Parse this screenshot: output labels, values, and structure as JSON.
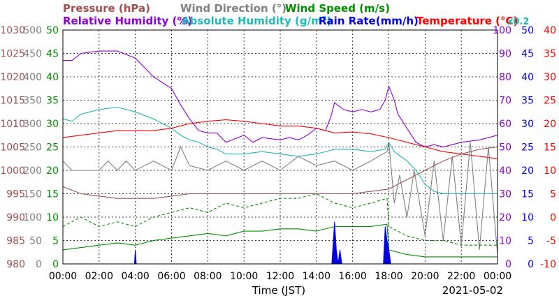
{
  "chart_data": {
    "type": "line",
    "date": "2021-05-02",
    "xlabel": "Time (JST)",
    "x_ticks": [
      "00:00",
      "02:00",
      "04:00",
      "06:00",
      "08:00",
      "10:00",
      "12:00",
      "14:00",
      "16:00",
      "18:00",
      "20:00",
      "22:00",
      "00:00"
    ],
    "x_range_hours": [
      0,
      24
    ],
    "grid": true,
    "legend_line1": [
      {
        "name": "Pressure (hPa)",
        "color": "#a05050"
      },
      {
        "name": "Wind Direction (°)",
        "color": "#808080"
      },
      {
        "name": "Wind Speed (m/s)",
        "color": "#009000"
      }
    ],
    "legend_line2": [
      {
        "name": "Relative Humidity (%)",
        "color": "#9000d8"
      },
      {
        "name": "Absolute Humidity (g/m",
        "sup": "3",
        "tail": ")",
        "color": "#20b8b8"
      },
      {
        "name": "Rain Rate(mm/h)",
        "color": "#0000e0"
      },
      {
        "name": "Temperature (°C)",
        "color": "#ff0000"
      }
    ],
    "abs_humidity_scale_note": "x0.2",
    "axes": {
      "pressure": {
        "range": [
          980,
          1030
        ],
        "ticks": [
          "1030",
          "1025",
          "1020",
          "1015",
          "1010",
          "1005",
          "1000",
          "995",
          "990",
          "985",
          "980"
        ],
        "color": "#a05050"
      },
      "wind_direction": {
        "range": [
          0,
          500
        ],
        "ticks": [
          "500",
          "450",
          "400",
          "350",
          "300",
          "250",
          "200",
          "150",
          "100",
          "50",
          "0"
        ],
        "color": "#808080"
      },
      "wind_speed": {
        "range": [
          0,
          50
        ],
        "ticks": [
          "50",
          "45",
          "40",
          "35",
          "30",
          "25",
          "20",
          "15",
          "10",
          "5",
          "0"
        ],
        "color": "#009000"
      },
      "humidity": {
        "range": [
          0,
          100
        ],
        "ticks": [
          "100",
          "90",
          "80",
          "70",
          "60",
          "50",
          "40",
          "30",
          "20",
          "10",
          "0"
        ],
        "color": "#9000d8"
      },
      "rain_rate": {
        "range": [
          0,
          50
        ],
        "ticks": [
          "50",
          "45",
          "40",
          "35",
          "30",
          "25",
          "20",
          "15",
          "10",
          "5",
          "0"
        ],
        "color": "#0000e0"
      },
      "temperature": {
        "range": [
          -10,
          40
        ],
        "ticks": [
          "40",
          "35",
          "30",
          "25",
          "20",
          "15",
          "10",
          "5",
          "0",
          "-5",
          "-10"
        ],
        "color": "#ff0000"
      }
    },
    "series": [
      {
        "name": "Relative Humidity (%)",
        "axis": "humidity",
        "color": "#9000d8",
        "points": [
          [
            0,
            87
          ],
          [
            0.5,
            87
          ],
          [
            1,
            90
          ],
          [
            2,
            91
          ],
          [
            3,
            91
          ],
          [
            4,
            88
          ],
          [
            5,
            80
          ],
          [
            6,
            75
          ],
          [
            6.5,
            68
          ],
          [
            7,
            62
          ],
          [
            7.5,
            57
          ],
          [
            8,
            56
          ],
          [
            8.5,
            56
          ],
          [
            9,
            52
          ],
          [
            10,
            55
          ],
          [
            10.5,
            52
          ],
          [
            11,
            54
          ],
          [
            12,
            53
          ],
          [
            12.5,
            54
          ],
          [
            13,
            53
          ],
          [
            13.5,
            55
          ],
          [
            14,
            58
          ],
          [
            14.5,
            57
          ],
          [
            14.8,
            63
          ],
          [
            15,
            69
          ],
          [
            15.5,
            66
          ],
          [
            16,
            65
          ],
          [
            16.5,
            66
          ],
          [
            17,
            65
          ],
          [
            17.5,
            66
          ],
          [
            17.8,
            70
          ],
          [
            18,
            76
          ],
          [
            18.3,
            70
          ],
          [
            18.5,
            64
          ],
          [
            19,
            58
          ],
          [
            19.5,
            52
          ],
          [
            20,
            50
          ],
          [
            20.5,
            51
          ],
          [
            21,
            50
          ],
          [
            21.5,
            51
          ],
          [
            22,
            52
          ],
          [
            23,
            53
          ],
          [
            24,
            55
          ]
        ]
      },
      {
        "name": "Absolute Humidity (g/m3)",
        "axis": "humidity",
        "color": "#20b8b8",
        "points": [
          [
            0,
            62
          ],
          [
            0.5,
            61
          ],
          [
            1,
            64
          ],
          [
            2,
            66
          ],
          [
            3,
            67
          ],
          [
            4,
            65
          ],
          [
            5,
            62
          ],
          [
            6,
            58
          ],
          [
            6.5,
            55
          ],
          [
            7,
            53
          ],
          [
            7.5,
            52
          ],
          [
            8,
            50
          ],
          [
            8.5,
            49
          ],
          [
            9,
            47
          ],
          [
            10,
            47
          ],
          [
            11,
            48
          ],
          [
            12,
            47
          ],
          [
            13,
            46
          ],
          [
            14,
            47
          ],
          [
            15,
            49
          ],
          [
            16,
            49
          ],
          [
            17,
            48
          ],
          [
            17.8,
            49
          ],
          [
            18,
            52
          ],
          [
            18.3,
            48
          ],
          [
            19,
            44
          ],
          [
            19.5,
            40
          ],
          [
            20,
            34
          ],
          [
            20.5,
            31
          ],
          [
            21,
            30
          ],
          [
            22,
            30
          ],
          [
            23,
            30
          ],
          [
            24,
            30
          ]
        ]
      },
      {
        "name": "Temperature (°C)",
        "axis": "temperature",
        "color": "#ff0000",
        "points": [
          [
            0,
            17
          ],
          [
            1,
            17.5
          ],
          [
            2,
            18
          ],
          [
            3,
            18.5
          ],
          [
            4,
            18.5
          ],
          [
            5,
            18.5
          ],
          [
            6,
            19
          ],
          [
            7,
            20
          ],
          [
            8,
            20.5
          ],
          [
            9,
            20.8
          ],
          [
            10,
            20.5
          ],
          [
            11,
            20
          ],
          [
            12,
            19.5
          ],
          [
            13,
            19.5
          ],
          [
            14,
            19
          ],
          [
            15,
            18
          ],
          [
            16,
            18.2
          ],
          [
            17,
            17.8
          ],
          [
            18,
            17
          ],
          [
            19,
            16
          ],
          [
            20,
            15
          ],
          [
            21,
            14
          ],
          [
            22,
            13.5
          ],
          [
            23,
            13
          ],
          [
            24,
            12.5
          ]
        ]
      },
      {
        "name": "Pressure (hPa)",
        "axis": "pressure",
        "color": "#a05050",
        "points": [
          [
            0,
            996.5
          ],
          [
            1,
            995
          ],
          [
            2,
            994.5
          ],
          [
            3,
            994
          ],
          [
            4,
            994
          ],
          [
            5,
            994
          ],
          [
            6,
            994.5
          ],
          [
            7,
            995
          ],
          [
            8,
            995
          ],
          [
            9,
            995
          ],
          [
            10,
            995
          ],
          [
            11,
            995
          ],
          [
            12,
            995
          ],
          [
            13,
            995
          ],
          [
            14,
            995
          ],
          [
            15,
            995
          ],
          [
            16,
            995
          ],
          [
            17,
            995.5
          ],
          [
            18,
            996
          ],
          [
            19,
            998
          ],
          [
            20,
            1000
          ],
          [
            21,
            1002
          ],
          [
            22,
            1003.5
          ],
          [
            23,
            1004.5
          ],
          [
            24,
            1005
          ]
        ]
      },
      {
        "name": "Wind Direction (°)",
        "axis": "wind_direction",
        "color": "#808080",
        "points": [
          [
            0,
            220
          ],
          [
            0.5,
            200
          ],
          [
            1,
            200
          ],
          [
            2,
            200
          ],
          [
            2.5,
            220
          ],
          [
            3,
            200
          ],
          [
            3.5,
            220
          ],
          [
            4,
            200
          ],
          [
            5,
            220
          ],
          [
            6,
            200
          ],
          [
            6.5,
            250
          ],
          [
            7,
            210
          ],
          [
            8,
            200
          ],
          [
            9,
            220
          ],
          [
            10,
            200
          ],
          [
            11,
            220
          ],
          [
            12,
            200
          ],
          [
            13,
            230
          ],
          [
            14,
            210
          ],
          [
            15,
            220
          ],
          [
            16,
            200
          ],
          [
            17,
            220
          ],
          [
            17.9,
            240
          ],
          [
            18,
            260
          ],
          [
            18.3,
            130
          ],
          [
            18.6,
            190
          ],
          [
            19,
            100
          ],
          [
            19.4,
            200
          ],
          [
            20,
            60
          ],
          [
            20.5,
            220
          ],
          [
            21,
            50
          ],
          [
            21.5,
            230
          ],
          [
            22,
            40
          ],
          [
            22.5,
            260
          ],
          [
            23,
            30
          ],
          [
            23.5,
            250
          ],
          [
            24,
            20
          ]
        ]
      },
      {
        "name": "Wind Speed (m/s)",
        "axis": "wind_speed",
        "color": "#009000",
        "points": [
          [
            0,
            3
          ],
          [
            1,
            3.5
          ],
          [
            2,
            4
          ],
          [
            3,
            4.5
          ],
          [
            4,
            4
          ],
          [
            5,
            5
          ],
          [
            6,
            5.5
          ],
          [
            7,
            6
          ],
          [
            8,
            6.5
          ],
          [
            9,
            6
          ],
          [
            10,
            7
          ],
          [
            11,
            7
          ],
          [
            12,
            7.5
          ],
          [
            13,
            7.5
          ],
          [
            14,
            7
          ],
          [
            15,
            8
          ],
          [
            16,
            8
          ],
          [
            17,
            8
          ],
          [
            17.9,
            8.5
          ],
          [
            18,
            3
          ],
          [
            19,
            2
          ],
          [
            20,
            1.5
          ],
          [
            21,
            1.5
          ],
          [
            22,
            1.5
          ],
          [
            23,
            1.5
          ],
          [
            24,
            1.5
          ]
        ]
      },
      {
        "name": "Wind Speed gust (m/s)",
        "axis": "wind_speed",
        "color": "#009000",
        "dashed": true,
        "points": [
          [
            0,
            8
          ],
          [
            1,
            10
          ],
          [
            2,
            8
          ],
          [
            3,
            9
          ],
          [
            4,
            8
          ],
          [
            5,
            10
          ],
          [
            6,
            11
          ],
          [
            7,
            12
          ],
          [
            8,
            11
          ],
          [
            9,
            13
          ],
          [
            10,
            12
          ],
          [
            11,
            13
          ],
          [
            12,
            14
          ],
          [
            13,
            14
          ],
          [
            14,
            15
          ],
          [
            15,
            13
          ],
          [
            16,
            12
          ],
          [
            17,
            13
          ],
          [
            17.9,
            14
          ],
          [
            18,
            8
          ],
          [
            19,
            6
          ],
          [
            20,
            5
          ],
          [
            21,
            5
          ],
          [
            22,
            4
          ],
          [
            23,
            4
          ],
          [
            24,
            4
          ]
        ]
      },
      {
        "name": "Rain Rate(mm/h)",
        "axis": "rain_rate",
        "color": "#0000e0",
        "filled": true,
        "points": [
          [
            0,
            0
          ],
          [
            3.95,
            0
          ],
          [
            4,
            3
          ],
          [
            4.05,
            0
          ],
          [
            14.85,
            0
          ],
          [
            15,
            9
          ],
          [
            15.1,
            3
          ],
          [
            15.2,
            0
          ],
          [
            15.3,
            3
          ],
          [
            15.4,
            0
          ],
          [
            17.7,
            0
          ],
          [
            17.8,
            8
          ],
          [
            17.9,
            5
          ],
          [
            18,
            3
          ],
          [
            18.1,
            0
          ],
          [
            24,
            0
          ]
        ]
      }
    ]
  }
}
